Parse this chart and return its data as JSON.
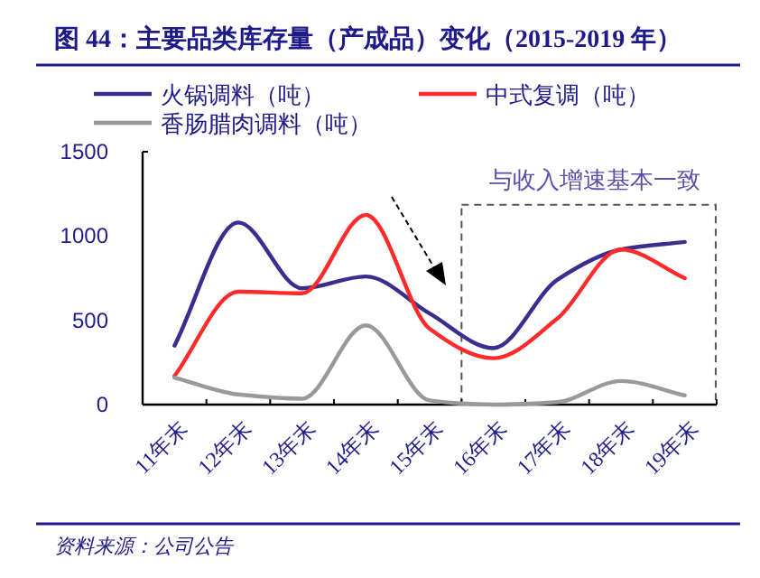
{
  "chart_data": {
    "type": "line",
    "title": "图 44：主要品类库存量（产成品）变化（2015-2019 年）",
    "categories": [
      "11年末",
      "12年末",
      "13年末",
      "14年末",
      "15年末",
      "16年末",
      "17年末",
      "18年末",
      "19年末"
    ],
    "series": [
      {
        "name": "火锅调料（吨）",
        "color": "#3b2d8f",
        "values": [
          350,
          1080,
          690,
          760,
          540,
          335,
          740,
          920,
          965
        ]
      },
      {
        "name": "中式复调（吨）",
        "color": "#ff2a2a",
        "values": [
          170,
          670,
          660,
          1125,
          450,
          275,
          510,
          920,
          750
        ]
      },
      {
        "name": "香肠腊肉调料（吨）",
        "color": "#999999",
        "values": [
          160,
          60,
          35,
          470,
          25,
          0,
          15,
          140,
          55
        ]
      }
    ],
    "ylim": [
      0,
      1500
    ],
    "yticks": [
      0,
      500,
      1000,
      1500
    ],
    "grid": false,
    "legend": "top left",
    "line_style": "solid",
    "marker": "none",
    "annotations": [
      "与收入增速基本一致",
      "资料来源：公司公告"
    ]
  }
}
